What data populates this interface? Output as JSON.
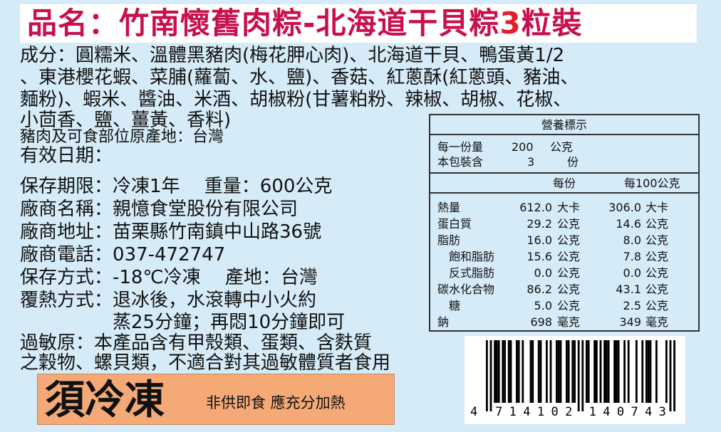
{
  "title": {
    "prefix": "品名：竹南懷舊肉粽-北海道干貝粽",
    "count": "3",
    "suffix": "粒裝"
  },
  "ingredients": [
    "成分：圓糯米、溫體黑豬肉(梅花胛心肉)、北海道干貝、鴨蛋黃1/2",
    "、東港櫻花蝦、菜脯(蘿蔔、水、鹽)、香菇、紅蔥酥(紅蔥頭、豬油、",
    "麵粉)、蝦米、醬油、米酒、胡椒粉(甘薯粕粉、辣椒、胡椒、花椒、",
    "小茴香、鹽、薑黃、香料)"
  ],
  "origin": "豬肉及可食部位原產地：台灣",
  "expiry": "有效日期：",
  "info": [
    "保存期限：冷凍1年　 重量：600公克",
    "廠商名稱：親憶食堂股份有限公司",
    "廠商地址：苗栗縣竹南鎮中山路36號",
    "廠商電話：037-472747",
    "保存方式：-18℃冷凍　 產地：台灣",
    "覆熱方式：退冰後，水滾轉中小火約",
    "　　　　　蒸25分鐘；再悶10分鐘即可"
  ],
  "allergen": [
    "過敏原：本產品含有甲殼類、蛋類、含麩質",
    "之穀物、螺貝類，不適合對其過敏體質者食用"
  ],
  "warning": {
    "main": "須冷凍",
    "sub": "非供即食 應充分加熱"
  },
  "nutrition": {
    "header": "營養標示",
    "serving_label": "每一份量",
    "serving_value": "200",
    "serving_unit": "公克",
    "servings_label": "本包裝含",
    "servings_value": "3",
    "servings_unit": "份",
    "col1": "每份",
    "col2": "每100公克",
    "rows": [
      {
        "name": "熱量",
        "v1": "612.0",
        "u1": "大卡",
        "v2": "306.0",
        "u2": "大卡"
      },
      {
        "name": "蛋白質",
        "v1": "29.2",
        "u1": "公克",
        "v2": "14.6",
        "u2": "公克"
      },
      {
        "name": "脂肪",
        "v1": "16.0",
        "u1": "公克",
        "v2": "8.0",
        "u2": "公克"
      },
      {
        "name": "　飽和脂肪",
        "v1": "15.6",
        "u1": "公克",
        "v2": "7.8",
        "u2": "公克"
      },
      {
        "name": "　反式脂肪",
        "v1": "0.0",
        "u1": "公克",
        "v2": "0.0",
        "u2": "公克"
      },
      {
        "name": "碳水化合物",
        "v1": "86.2",
        "u1": "公克",
        "v2": "43.1",
        "u2": "公克"
      },
      {
        "name": "　糖",
        "v1": "5.0",
        "u1": "公克",
        "v2": "2.5",
        "u2": "公克"
      },
      {
        "name": "鈉",
        "v1": "698",
        "u1": "毫克",
        "v2": "349",
        "u2": "毫克"
      }
    ]
  },
  "barcode": "4714102140743",
  "colors": {
    "background": "#d5ebf7",
    "title": "#c8104f",
    "warning_box": "#f4a977"
  }
}
